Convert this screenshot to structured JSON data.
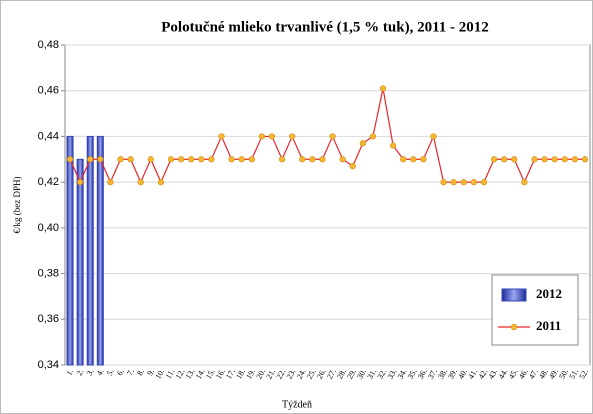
{
  "chart_data": {
    "type": "bar_line",
    "title": "Polotučné mlieko trvanlivé (1,5 % tuk), 2011 - 2012",
    "xlabel": "Týždeň",
    "ylabel": "€/kg (bez DPH)",
    "categories": [
      "1.",
      "2.",
      "3.",
      "4.",
      "5.",
      "6.",
      "7.",
      "8.",
      "9.",
      "10.",
      "11.",
      "12.",
      "13.",
      "14.",
      "15.",
      "16.",
      "17.",
      "18.",
      "19.",
      "20.",
      "21.",
      "22.",
      "23.",
      "24.",
      "25.",
      "26.",
      "27.",
      "28.",
      "29.",
      "30.",
      "31.",
      "32.",
      "33.",
      "34.",
      "35.",
      "36.",
      "37.",
      "38.",
      "39.",
      "40.",
      "41.",
      "42.",
      "43.",
      "44.",
      "45.",
      "46.",
      "47.",
      "48.",
      "49.",
      "50.",
      "51.",
      "52."
    ],
    "series": [
      {
        "name": "2012",
        "kind": "bar",
        "color": "#3a47b8",
        "values": [
          0.44,
          0.43,
          0.44,
          0.44,
          null,
          null,
          null,
          null,
          null,
          null,
          null,
          null,
          null,
          null,
          null,
          null,
          null,
          null,
          null,
          null,
          null,
          null,
          null,
          null,
          null,
          null,
          null,
          null,
          null,
          null,
          null,
          null,
          null,
          null,
          null,
          null,
          null,
          null,
          null,
          null,
          null,
          null,
          null,
          null,
          null,
          null,
          null,
          null,
          null,
          null,
          null,
          null
        ]
      },
      {
        "name": "2011",
        "kind": "line",
        "color": "#e8262a",
        "marker_color": "#f5b731",
        "values": [
          0.43,
          0.42,
          0.43,
          0.43,
          0.42,
          0.43,
          0.43,
          0.42,
          0.43,
          0.42,
          0.43,
          0.43,
          0.43,
          0.43,
          0.43,
          0.44,
          0.43,
          0.43,
          0.43,
          0.44,
          0.44,
          0.43,
          0.44,
          0.43,
          0.43,
          0.43,
          0.44,
          0.43,
          0.427,
          0.437,
          0.44,
          0.461,
          0.436,
          0.43,
          0.43,
          0.43,
          0.44,
          0.42,
          0.42,
          0.42,
          0.42,
          0.42,
          0.43,
          0.43,
          0.43,
          0.42,
          0.43,
          0.43,
          0.43,
          0.43,
          0.43,
          0.43
        ]
      }
    ],
    "ylim": [
      0.34,
      0.48
    ],
    "yticks": [
      {
        "value": 0.34,
        "label": "0,34"
      },
      {
        "value": 0.36,
        "label": "0,36"
      },
      {
        "value": 0.38,
        "label": "0,38"
      },
      {
        "value": 0.4,
        "label": "0,40"
      },
      {
        "value": 0.42,
        "label": "0,42"
      },
      {
        "value": 0.44,
        "label": "0,44"
      },
      {
        "value": 0.46,
        "label": "0,46"
      },
      {
        "value": 0.48,
        "label": "0,48"
      }
    ],
    "legend": "lower right"
  }
}
